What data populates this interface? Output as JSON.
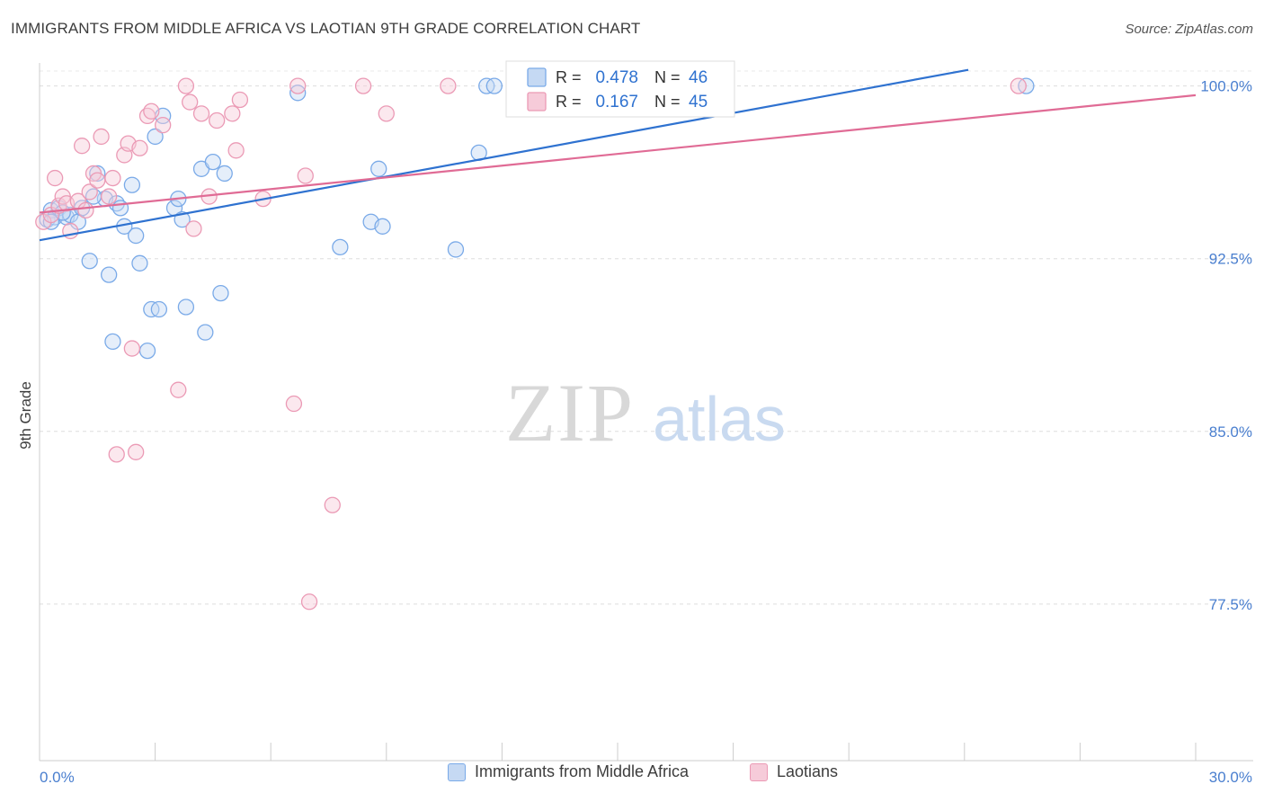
{
  "chart_data": {
    "type": "scatter",
    "title": "IMMIGRANTS FROM MIDDLE AFRICA VS LAOTIAN 9TH GRADE CORRELATION CHART",
    "source": "Source: ZipAtlas.com",
    "xlabel": "",
    "ylabel": "9th Grade",
    "xlim": [
      0,
      30
    ],
    "ylim": [
      70.7,
      101.0
    ],
    "x_tick_labels": [
      "0.0%",
      "30.0%"
    ],
    "y_ticks": [
      {
        "value": 100.0,
        "label": "100.0%"
      },
      {
        "value": 92.5,
        "label": "92.5%"
      },
      {
        "value": 85.0,
        "label": "85.0%"
      },
      {
        "value": 77.5,
        "label": "77.5%"
      }
    ],
    "watermark": {
      "zip": "ZIP",
      "atlas": "atlas"
    },
    "legend": {
      "r_label": "R =",
      "n_label": "N =",
      "entries": [
        {
          "r": "0.478",
          "n": "46"
        },
        {
          "r": "0.167",
          "n": "45"
        }
      ]
    },
    "series": [
      {
        "name": "Immigrants from Middle Africa",
        "color": "#7aaae8",
        "fill": "#c5d9f3",
        "line_color": "#2f72d0",
        "trend": [
          [
            0,
            93.3
          ],
          [
            24.1,
            100.7
          ]
        ],
        "points": [
          [
            0.2,
            94.2
          ],
          [
            0.3,
            94.6
          ],
          [
            0.4,
            94.3
          ],
          [
            0.5,
            94.7
          ],
          [
            0.7,
            94.3
          ],
          [
            0.8,
            94.4
          ],
          [
            1.0,
            94.1
          ],
          [
            1.1,
            94.7
          ],
          [
            1.3,
            92.4
          ],
          [
            1.5,
            96.2
          ],
          [
            1.7,
            95.1
          ],
          [
            1.8,
            91.8
          ],
          [
            1.9,
            88.9
          ],
          [
            2.0,
            94.9
          ],
          [
            2.1,
            94.7
          ],
          [
            2.2,
            93.9
          ],
          [
            2.4,
            95.7
          ],
          [
            2.5,
            93.5
          ],
          [
            2.6,
            92.3
          ],
          [
            2.8,
            88.5
          ],
          [
            2.9,
            90.3
          ],
          [
            3.0,
            97.8
          ],
          [
            3.1,
            90.3
          ],
          [
            3.2,
            98.7
          ],
          [
            3.5,
            94.7
          ],
          [
            3.6,
            95.1
          ],
          [
            3.7,
            94.2
          ],
          [
            3.8,
            90.4
          ],
          [
            4.2,
            96.4
          ],
          [
            4.3,
            89.3
          ],
          [
            4.5,
            96.7
          ],
          [
            4.8,
            96.2
          ],
          [
            4.7,
            91.0
          ],
          [
            6.7,
            99.7
          ],
          [
            7.8,
            93.0
          ],
          [
            8.6,
            94.1
          ],
          [
            8.8,
            96.4
          ],
          [
            8.9,
            93.9
          ],
          [
            10.8,
            92.9
          ],
          [
            11.4,
            97.1
          ],
          [
            11.6,
            100.0
          ],
          [
            11.8,
            100.0
          ],
          [
            25.6,
            100.0
          ],
          [
            0.3,
            94.1
          ],
          [
            1.4,
            95.2
          ],
          [
            0.6,
            94.5
          ]
        ]
      },
      {
        "name": "Laotians",
        "color": "#eb9ab5",
        "fill": "#f6cbd9",
        "line_color": "#e06b95",
        "trend": [
          [
            0,
            94.5
          ],
          [
            30,
            99.6
          ]
        ],
        "points": [
          [
            0.1,
            94.1
          ],
          [
            0.3,
            94.4
          ],
          [
            0.4,
            96.0
          ],
          [
            0.5,
            94.8
          ],
          [
            0.6,
            95.2
          ],
          [
            0.7,
            94.9
          ],
          [
            0.8,
            93.7
          ],
          [
            1.0,
            95.0
          ],
          [
            1.1,
            97.4
          ],
          [
            1.2,
            94.6
          ],
          [
            1.3,
            95.4
          ],
          [
            1.4,
            96.2
          ],
          [
            1.5,
            95.9
          ],
          [
            1.6,
            97.8
          ],
          [
            1.8,
            95.2
          ],
          [
            1.9,
            96.0
          ],
          [
            2.0,
            84.0
          ],
          [
            2.2,
            97.0
          ],
          [
            2.3,
            97.5
          ],
          [
            2.4,
            88.6
          ],
          [
            2.5,
            84.1
          ],
          [
            2.6,
            97.3
          ],
          [
            2.8,
            98.7
          ],
          [
            2.9,
            98.9
          ],
          [
            3.2,
            98.3
          ],
          [
            3.6,
            86.8
          ],
          [
            3.8,
            100.0
          ],
          [
            3.9,
            99.3
          ],
          [
            4.0,
            93.8
          ],
          [
            4.2,
            98.8
          ],
          [
            4.4,
            95.2
          ],
          [
            4.6,
            98.5
          ],
          [
            5.0,
            98.8
          ],
          [
            5.1,
            97.2
          ],
          [
            5.2,
            99.4
          ],
          [
            5.8,
            95.1
          ],
          [
            6.6,
            86.2
          ],
          [
            6.7,
            100.0
          ],
          [
            6.9,
            96.1
          ],
          [
            7.0,
            77.6
          ],
          [
            7.6,
            81.8
          ],
          [
            8.4,
            100.0
          ],
          [
            9.0,
            98.8
          ],
          [
            10.6,
            100.0
          ],
          [
            25.4,
            100.0
          ]
        ]
      }
    ]
  }
}
